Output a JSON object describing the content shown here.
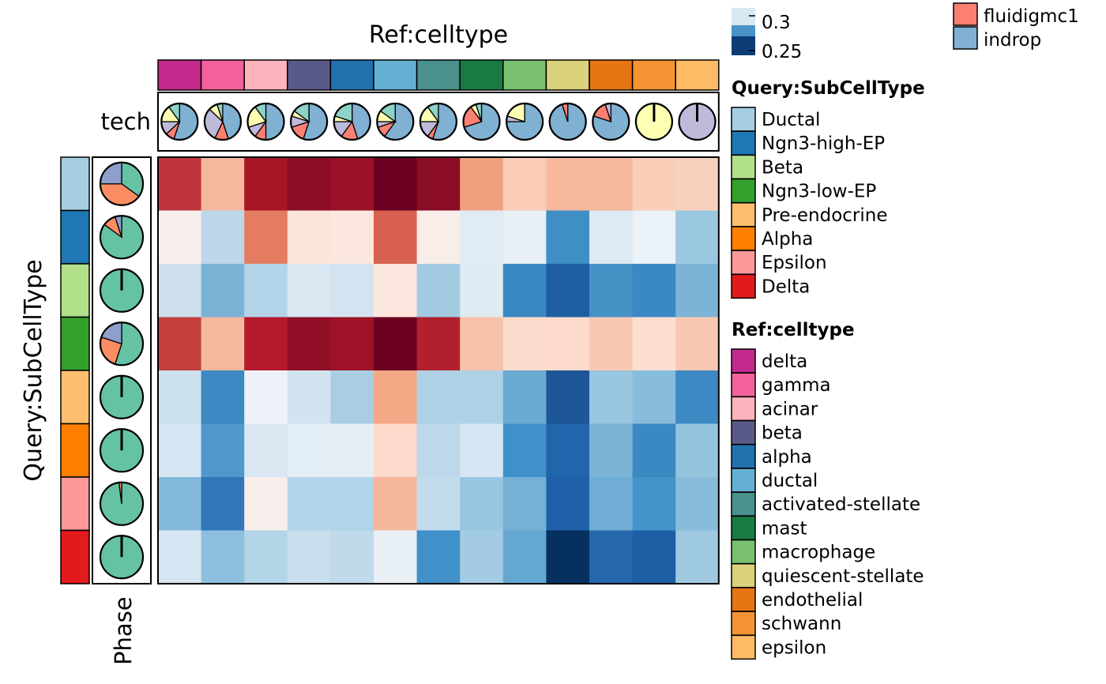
{
  "chart_data": {
    "type": "heatmap",
    "title": "Ref:celltype",
    "ylabel": "Query:SubCellType",
    "columns": [
      "delta",
      "gamma",
      "acinar",
      "beta",
      "alpha",
      "ductal",
      "activated-stellate",
      "mast",
      "macrophage",
      "quiescent-stellate",
      "endothelial",
      "schwann",
      "epsilon"
    ],
    "rows": [
      "Ductal",
      "Ngn3-high-EP",
      "Beta",
      "Ngn3-low-EP",
      "Pre-endocrine",
      "Alpha",
      "Epsilon",
      "Delta"
    ],
    "cell_colors": [
      [
        "#c0343c",
        "#f5b79d",
        "#a81526",
        "#8a0c25",
        "#9a1026",
        "#6b0020",
        "#8a0c25",
        "#f0a07f",
        "#facbb6",
        "#f7b89e",
        "#f7b89e",
        "#facdb8",
        "#f9d0bc"
      ],
      [
        "#f8efec",
        "#bcd7ea",
        "#e47c62",
        "#fbe4da",
        "#fbe7de",
        "#d86050",
        "#f8ede9",
        "#e1ebf3",
        "#e7eff5",
        "#3f8fc5",
        "#dde9f3",
        "#eaf1f7",
        "#9ac8e0"
      ],
      [
        "#cfe1ee",
        "#7bb3d7",
        "#b3d3e8",
        "#d9e7f2",
        "#d3e3ef",
        "#fce7de",
        "#a2cbe2",
        "#dfeaf3",
        "#3a88c2",
        "#1d5ea4",
        "#4592c7",
        "#3b89c2",
        "#7cb4d8"
      ],
      [
        "#c3403e",
        "#f5b79d",
        "#b41a2c",
        "#900e26",
        "#9d1227",
        "#6b0020",
        "#b2202f",
        "#f7c2aa",
        "#fbdbcc",
        "#fcdbcd",
        "#f8c7b2",
        "#fcdfd1",
        "#f8c8b3"
      ],
      [
        "#cde0ee",
        "#3c89c3",
        "#ecf2f7",
        "#d2e3f0",
        "#a9cee4",
        "#f4a885",
        "#aed1e5",
        "#aed1e5",
        "#6aaad3",
        "#1d5797",
        "#98c5df",
        "#88bcdb",
        "#3c89c3"
      ],
      [
        "#d6e6f2",
        "#4f98cc",
        "#d9e7f3",
        "#e3edf5",
        "#e5eef5",
        "#fbdacb",
        "#bdd8eb",
        "#d6e6f2",
        "#4090c9",
        "#2166ac",
        "#7cb4d8",
        "#3b89c2",
        "#95c4df"
      ],
      [
        "#82b9da",
        "#3076b9",
        "#f8efec",
        "#b3d4e8",
        "#b2d4e8",
        "#f5b69b",
        "#c2dcec",
        "#98c6e0",
        "#75b0d5",
        "#2060aa",
        "#6fadd4",
        "#4594c9",
        "#88bcdb"
      ],
      [
        "#d6e6f2",
        "#8cc0de",
        "#b4d4e8",
        "#c8deed",
        "#bfdaeb",
        "#e8f0f6",
        "#4090c9",
        "#a3cbe3",
        "#64a7d1",
        "#06305f",
        "#2767ad",
        "#1d5ea4",
        "#9ec9e1"
      ]
    ],
    "ref_celltype_colors": [
      "#c3298c",
      "#f3629c",
      "#fdb4bc",
      "#5a5a8a",
      "#2172ad",
      "#65b0d2",
      "#4a918b",
      "#1a7a43",
      "#79c070",
      "#dcd17c",
      "#e67512",
      "#f59433",
      "#febb65"
    ],
    "subcelltype_colors": [
      "#a6cee3",
      "#1f78b4",
      "#b2df8a",
      "#33a02c",
      "#fdbf6f",
      "#ff7f00",
      "#fb9a99",
      "#e31a1c"
    ],
    "tech_pies": [
      [
        [
          "#80b1d3",
          0.55
        ],
        [
          "#fb8072",
          0.08
        ],
        [
          "#bebada",
          0.12
        ],
        [
          "#ffffb3",
          0.15
        ],
        [
          "#8dd3c7",
          0.1
        ]
      ],
      [
        [
          "#80b1d3",
          0.45
        ],
        [
          "#fb8072",
          0.12
        ],
        [
          "#bebada",
          0.3
        ],
        [
          "#ffffb3",
          0.08
        ],
        [
          "#8dd3c7",
          0.05
        ]
      ],
      [
        [
          "#80b1d3",
          0.5
        ],
        [
          "#fb8072",
          0.1
        ],
        [
          "#bebada",
          0.1
        ],
        [
          "#ffffb3",
          0.2
        ],
        [
          "#8dd3c7",
          0.1
        ]
      ],
      [
        [
          "#80b1d3",
          0.55
        ],
        [
          "#fb8072",
          0.15
        ],
        [
          "#bebada",
          0.1
        ],
        [
          "#ffffb3",
          0.05
        ],
        [
          "#8dd3c7",
          0.15
        ]
      ],
      [
        [
          "#80b1d3",
          0.45
        ],
        [
          "#fb8072",
          0.15
        ],
        [
          "#bebada",
          0.15
        ],
        [
          "#ffffb3",
          0.05
        ],
        [
          "#8dd3c7",
          0.2
        ]
      ],
      [
        [
          "#80b1d3",
          0.6
        ],
        [
          "#fb8072",
          0.1
        ],
        [
          "#bebada",
          0.05
        ],
        [
          "#ffffb3",
          0.1
        ],
        [
          "#8dd3c7",
          0.15
        ]
      ],
      [
        [
          "#80b1d3",
          0.55
        ],
        [
          "#fb8072",
          0.05
        ],
        [
          "#bebada",
          0.15
        ],
        [
          "#ffffb3",
          0.15
        ],
        [
          "#8dd3c7",
          0.1
        ]
      ],
      [
        [
          "#80b1d3",
          0.7
        ],
        [
          "#fb8072",
          0.2
        ],
        [
          "#ffffb3",
          0.05
        ],
        [
          "#8dd3c7",
          0.05
        ]
      ],
      [
        [
          "#80b1d3",
          0.75
        ],
        [
          "#bebada",
          0.05
        ],
        [
          "#ffffb3",
          0.2
        ]
      ],
      [
        [
          "#80b1d3",
          0.95
        ],
        [
          "#fb8072",
          0.05
        ]
      ],
      [
        [
          "#80b1d3",
          0.8
        ],
        [
          "#fb8072",
          0.15
        ],
        [
          "#bebada",
          0.05
        ]
      ],
      [
        [
          "#ffffb3",
          1.0
        ]
      ],
      [
        [
          "#bebada",
          1.0
        ]
      ]
    ],
    "phase_pies": [
      [
        [
          "#66c2a5",
          0.35
        ],
        [
          "#fc8d62",
          0.4
        ],
        [
          "#8da0cb",
          0.25
        ]
      ],
      [
        [
          "#66c2a5",
          0.85
        ],
        [
          "#fc8d62",
          0.1
        ],
        [
          "#8da0cb",
          0.05
        ]
      ],
      [
        [
          "#66c2a5",
          1.0
        ]
      ],
      [
        [
          "#66c2a5",
          0.55
        ],
        [
          "#fc8d62",
          0.25
        ],
        [
          "#8da0cb",
          0.2
        ]
      ],
      [
        [
          "#66c2a5",
          1.0
        ]
      ],
      [
        [
          "#66c2a5",
          1.0
        ]
      ],
      [
        [
          "#66c2a5",
          0.98
        ],
        [
          "#fc8d62",
          0.02
        ]
      ],
      [
        [
          "#66c2a5",
          1.0
        ]
      ]
    ]
  },
  "labels": {
    "tech": "tech",
    "phase": "Phase"
  },
  "legends": {
    "colorbar_ticks": [
      "0.3",
      "0.25"
    ],
    "tech_entries": [
      {
        "label": "fluidigmc1",
        "color": "#fb8072"
      },
      {
        "label": "indrop",
        "color": "#80b1d3"
      }
    ],
    "subcelltype_title": "Query:SubCellType",
    "subcelltype_entries": [
      "Ductal",
      "Ngn3-high-EP",
      "Beta",
      "Ngn3-low-EP",
      "Pre-endocrine",
      "Alpha",
      "Epsilon",
      "Delta"
    ],
    "celltype_title": "Ref:celltype",
    "celltype_entries": [
      "delta",
      "gamma",
      "acinar",
      "beta",
      "alpha",
      "ductal",
      "activated-stellate",
      "mast",
      "macrophage",
      "quiescent-stellate",
      "endothelial",
      "schwann",
      "epsilon"
    ]
  }
}
